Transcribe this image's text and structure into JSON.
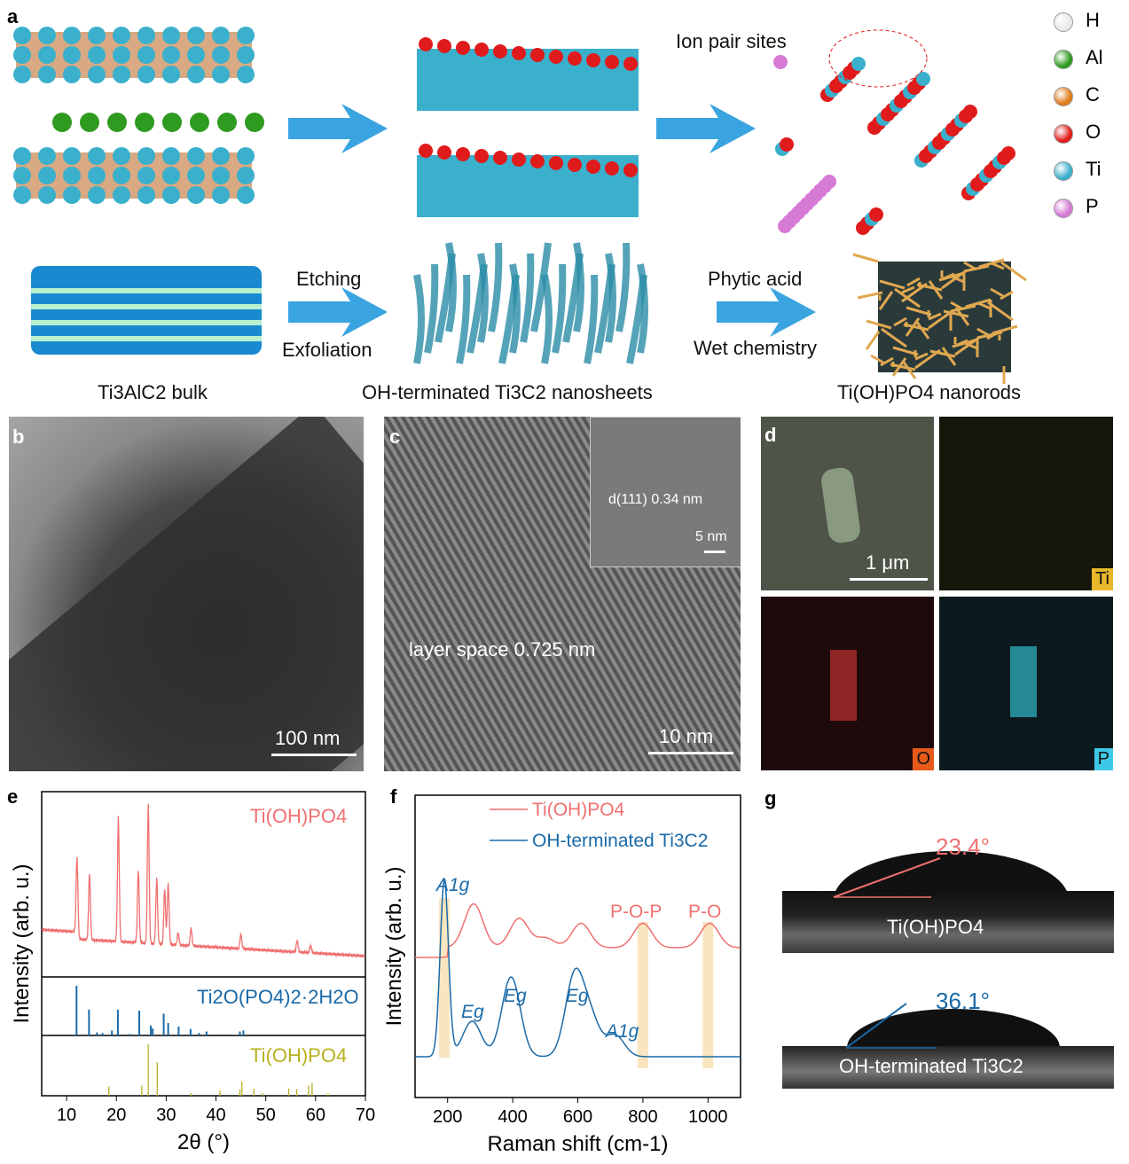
{
  "panel_a": {
    "label": "a",
    "ion_pair_label": "Ion pair sites",
    "legend": [
      {
        "el": "H",
        "color": "#e8e8e8"
      },
      {
        "el": "Al",
        "color": "#2e9a1f"
      },
      {
        "el": "C",
        "color": "#e07b1a"
      },
      {
        "el": "O",
        "color": "#e01b1b"
      },
      {
        "el": "Ti",
        "color": "#3ab0cc"
      },
      {
        "el": "P",
        "color": "#d67ad6"
      }
    ],
    "step1_top": "Etching",
    "step1_bottom": "Exfoliation",
    "step2_top": "Phytic acid",
    "step2_bottom": "Wet chemistry",
    "caption1": "Ti3AlC2 bulk",
    "caption2": "OH-terminated Ti3C2 nanosheets",
    "caption3": "Ti(OH)PO4 nanorods",
    "arrow_color": "#3aa4e0"
  },
  "panel_b": {
    "label": "b",
    "scale": "100 nm"
  },
  "panel_c": {
    "label": "c",
    "layer_space": "layer space 0.725 nm",
    "scale": "10 nm",
    "inset_d": "d(111) 0.34 nm",
    "inset_scale": "5 nm"
  },
  "panel_d": {
    "label": "d",
    "scale": "1 μm",
    "maps": [
      {
        "el": "Ti",
        "color": "#e8b82a"
      },
      {
        "el": "O",
        "color": "#e85a1a"
      },
      {
        "el": "P",
        "color": "#3ec8e8"
      }
    ]
  },
  "panel_g": {
    "label": "g",
    "samples": [
      {
        "name": "Ti(OH)PO4",
        "angle": "23.4°",
        "color": "#f07070"
      },
      {
        "name": "OH-terminated Ti3C2",
        "angle": "36.1°",
        "color": "#1a6aa8"
      }
    ]
  },
  "chart_data": [
    {
      "type": "line",
      "panel": "e",
      "xlabel": "2θ (°)",
      "ylabel": "Intensity (arb. u.)",
      "xlim": [
        5,
        70
      ],
      "xticks": [
        10,
        20,
        30,
        40,
        50,
        60,
        70
      ],
      "series": [
        {
          "name": "Ti(OH)PO4",
          "color": "#f07070",
          "kind": "xrd",
          "peaks": [
            [
              12.1,
              0.55
            ],
            [
              14.6,
              0.45
            ],
            [
              20.4,
              0.85
            ],
            [
              24.4,
              0.5
            ],
            [
              26.4,
              0.95
            ],
            [
              28.1,
              0.45
            ],
            [
              29.7,
              0.38
            ],
            [
              30.4,
              0.42
            ],
            [
              32.4,
              0.08
            ],
            [
              35,
              0.12
            ],
            [
              45,
              0.1
            ],
            [
              56.3,
              0.08
            ],
            [
              59,
              0.05
            ]
          ]
        },
        {
          "name": "Ti2O(PO4)2·2H2O",
          "color": "#1a6aa8",
          "kind": "reference",
          "sticks": [
            [
              12,
              1
            ],
            [
              14.5,
              0.52
            ],
            [
              16.1,
              0.06
            ],
            [
              17.2,
              0.05
            ],
            [
              19.1,
              0.1
            ],
            [
              20.3,
              0.52
            ],
            [
              22.7,
              0.03
            ],
            [
              24.6,
              0.5
            ],
            [
              26.9,
              0.2
            ],
            [
              27.3,
              0.14
            ],
            [
              29.5,
              0.44
            ],
            [
              30.4,
              0.25
            ],
            [
              32.5,
              0.18
            ],
            [
              34.9,
              0.13
            ],
            [
              36.6,
              0.05
            ],
            [
              38.1,
              0.08
            ],
            [
              44.8,
              0.08
            ],
            [
              45.5,
              0.1
            ]
          ]
        },
        {
          "name": "Ti(OH)PO4",
          "color": "#b8b020",
          "kind": "reference",
          "sticks": [
            [
              18.5,
              0.18
            ],
            [
              25.1,
              0.2
            ],
            [
              26.4,
              1
            ],
            [
              28.2,
              0.65
            ],
            [
              35,
              0.05
            ],
            [
              40.8,
              0.1
            ],
            [
              44.8,
              0.12
            ],
            [
              45.2,
              0.27
            ],
            [
              47.6,
              0.14
            ],
            [
              49.3,
              0.05
            ],
            [
              54.6,
              0.14
            ],
            [
              56.2,
              0.13
            ],
            [
              58.6,
              0.2
            ],
            [
              59.3,
              0.25
            ],
            [
              62.5,
              0.04
            ]
          ]
        }
      ]
    },
    {
      "type": "line",
      "panel": "f",
      "xlabel": "Raman shift (cm-1)",
      "ylabel": "Intensity (arb. u.)",
      "xlim": [
        100,
        1100
      ],
      "xticks": [
        200,
        400,
        600,
        800,
        1000
      ],
      "legend_placement": "top",
      "bands": [
        190,
        800,
        1000
      ],
      "annotations": [
        {
          "text": "A1g",
          "x": 190,
          "series": "OH-terminated Ti3C2"
        },
        {
          "text": "Eg",
          "x": 270
        },
        {
          "text": "Eg",
          "x": 395
        },
        {
          "text": "Eg",
          "x": 580
        },
        {
          "text": "A1g",
          "x": 715
        },
        {
          "text": "P-O-P",
          "x": 800,
          "series": "Ti(OH)PO4"
        },
        {
          "text": "P-O",
          "x": 1000,
          "series": "Ti(OH)PO4"
        }
      ],
      "series": [
        {
          "name": "Ti(OH)PO4",
          "color": "#f07070",
          "peaks": [
            [
              280,
              0.45
            ],
            [
              420,
              0.3
            ],
            [
              500,
              0.1
            ],
            [
              610,
              0.25
            ],
            [
              800,
              0.25
            ],
            [
              1005,
              0.25
            ]
          ],
          "baseline": 0.5
        },
        {
          "name": "OH-terminated Ti3C2",
          "color": "#1a6aa8",
          "peaks": [
            [
              190,
              1.0
            ],
            [
              275,
              0.2
            ],
            [
              395,
              0.45
            ],
            [
              590,
              0.45
            ],
            [
              640,
              0.2
            ],
            [
              715,
              0.12
            ]
          ],
          "baseline": 0.04
        }
      ]
    }
  ]
}
